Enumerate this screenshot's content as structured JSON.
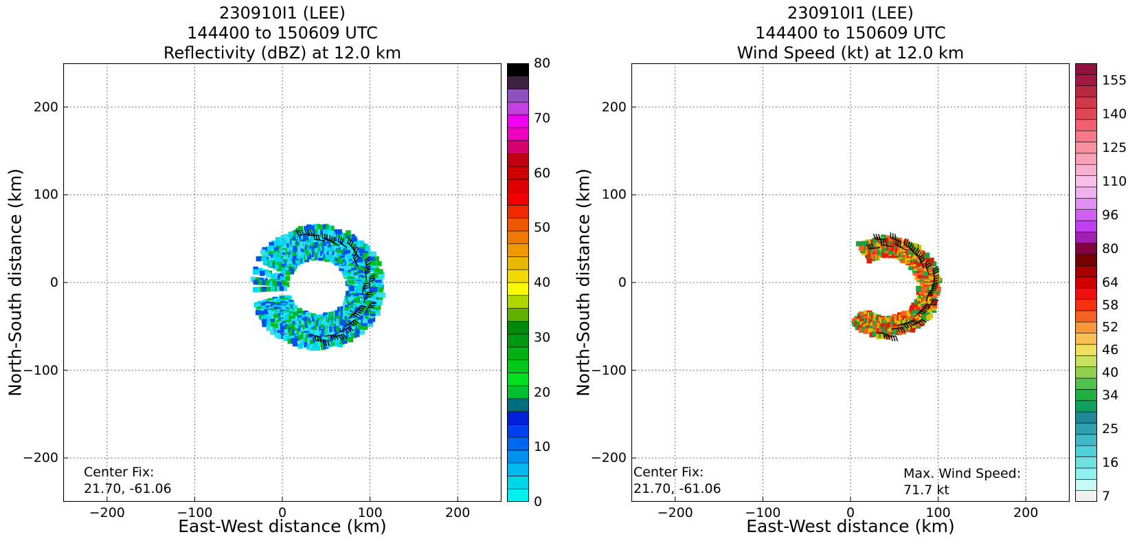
{
  "chart_data": [
    {
      "type": "heatmap",
      "title_lines": [
        "230910I1 (LEE)",
        "144400 to 150609 UTC",
        "Reflectivity (dBZ) at 12.0 km"
      ],
      "xlabel": "East-West distance (km)",
      "ylabel": "North-South distance (km)",
      "xlim": [
        -250,
        250
      ],
      "ylim": [
        -250,
        250
      ],
      "xticks": [
        "−200",
        "−100",
        "0",
        "100",
        "200"
      ],
      "yticks": [
        "200",
        "100",
        "0",
        "−100",
        "−200"
      ],
      "grid": true,
      "center_fix_label": "Center Fix:",
      "center_fix_value": "21.70, -61.06",
      "colorbar": {
        "min": 0,
        "max": 80,
        "tick_labels": [
          "0",
          "10",
          "20",
          "30",
          "40",
          "50",
          "60",
          "70",
          "80"
        ],
        "tick_values": [
          0,
          10,
          20,
          30,
          40,
          50,
          60,
          70,
          80
        ],
        "colors": [
          "#00f0f0",
          "#00d8e8",
          "#00b8f0",
          "#0090f0",
          "#0068f0",
          "#0040f0",
          "#0020d8",
          "#006e7e",
          "#00c030",
          "#00e020",
          "#00c818",
          "#00b010",
          "#009810",
          "#008808",
          "#60b000",
          "#b0d800",
          "#f8f800",
          "#f0d800",
          "#e8b800",
          "#f09800",
          "#f07800",
          "#f05800",
          "#f02800",
          "#f00000",
          "#e00000",
          "#d00000",
          "#c00010",
          "#d80070",
          "#f000c0",
          "#f000f0",
          "#c040e0",
          "#9050c0",
          "#402040",
          "#000000"
        ]
      },
      "echo_ring": {
        "center_km": [
          40,
          -5
        ],
        "inner_radius_km": 38,
        "outer_radius_km": 75,
        "dominant_colors": [
          "#0050f0",
          "#00c020",
          "#30e0f0",
          "#00d8f8"
        ]
      },
      "series": []
    },
    {
      "type": "heatmap",
      "title_lines": [
        "230910I1 (LEE)",
        "144400 to 150609 UTC",
        "Wind Speed (kt) at 12.0 km"
      ],
      "xlabel": "East-West distance (km)",
      "ylabel": "North-South distance (km)",
      "xlim": [
        -250,
        250
      ],
      "ylim": [
        -250,
        250
      ],
      "xticks": [
        "−200",
        "−100",
        "0",
        "100",
        "200"
      ],
      "yticks": [
        "200",
        "100",
        "0",
        "−100",
        "−200"
      ],
      "grid": true,
      "center_fix_label": "Center Fix:",
      "center_fix_value": "21.70, -61.06",
      "max_wind_label": "Max. Wind Speed:",
      "max_wind_value": "71.7 kt",
      "colorbar": {
        "tick_labels": [
          "7",
          "16",
          "25",
          "34",
          "40",
          "46",
          "52",
          "58",
          "64",
          "80",
          "96",
          "110",
          "125",
          "140",
          "155"
        ],
        "tick_bins": [
          0,
          3,
          6,
          9,
          11,
          13,
          15,
          17,
          19,
          22,
          25,
          28,
          31,
          34,
          37
        ],
        "colors": [
          "#f0f0f0",
          "#c8f8f8",
          "#90f0f0",
          "#70e0e0",
          "#50d0d8",
          "#40b8c8",
          "#30a0b0",
          "#208898",
          "#10a060",
          "#20b040",
          "#50c050",
          "#90d050",
          "#c8e060",
          "#f0e060",
          "#f8c050",
          "#f89838",
          "#f86020",
          "#f83010",
          "#f01010",
          "#d00000",
          "#a80000",
          "#780000",
          "#800040",
          "#a020b0",
          "#c040f0",
          "#d060f0",
          "#e090f0",
          "#f0b0f0",
          "#f8c0e8",
          "#f8b0d0",
          "#f8a0b8",
          "#f890a0",
          "#f87888",
          "#f06070",
          "#e04858",
          "#d03848",
          "#b82840",
          "#a01840",
          "#901040"
        ]
      },
      "wind_band": {
        "center_km": [
          40,
          -5
        ],
        "inner_radius_km": 40,
        "outer_radius_km": 62,
        "dominant_colors": [
          "#e02000",
          "#f86020",
          "#20a040",
          "#e0c000"
        ]
      },
      "series": []
    }
  ]
}
